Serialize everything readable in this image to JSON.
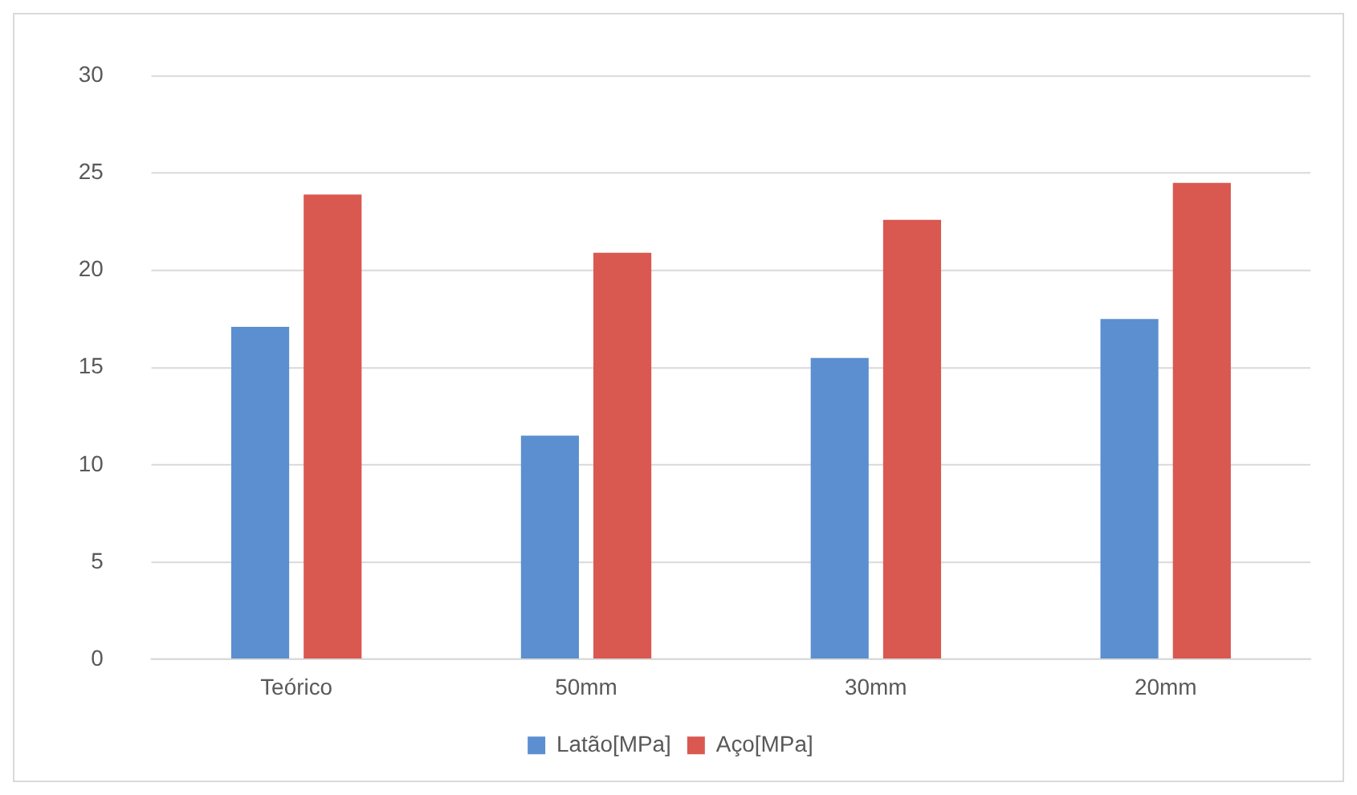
{
  "chart_data": {
    "type": "bar",
    "categories": [
      "Teórico",
      "50mm",
      "30mm",
      "20mm"
    ],
    "series": [
      {
        "name": "Latão[MPa]",
        "color": "#5b8fd0",
        "values": [
          17.1,
          11.5,
          15.5,
          17.5
        ]
      },
      {
        "name": "Aço[MPa]",
        "color": "#d95850",
        "values": [
          23.9,
          20.9,
          22.6,
          24.5
        ]
      }
    ],
    "ylim": [
      0,
      30
    ],
    "yticks": [
      0,
      5,
      10,
      15,
      20,
      25,
      30
    ],
    "grid": "y",
    "legend": "bottom"
  }
}
